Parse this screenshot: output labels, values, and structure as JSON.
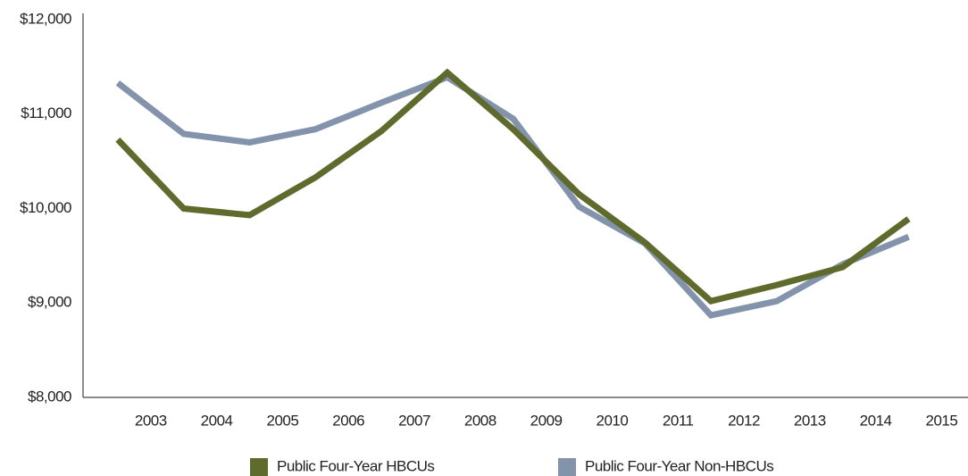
{
  "chart_data": {
    "type": "line",
    "categories": [
      "2003",
      "2004",
      "2005",
      "2006",
      "2007",
      "2008",
      "2009",
      "2010",
      "2011",
      "2012",
      "2013",
      "2014",
      "2015"
    ],
    "series": [
      {
        "name": "Public Four-Year HBCUs",
        "color": "#5f6b2d",
        "values": [
          10730,
          10000,
          9930,
          10330,
          10820,
          11440,
          10840,
          10150,
          9640,
          9020,
          9190,
          9380,
          9890
        ]
      },
      {
        "name": "Public Four-Year Non-HBCUs",
        "color": "#8293ab",
        "values": [
          11330,
          10790,
          10700,
          10840,
          11120,
          11390,
          10950,
          10020,
          9630,
          8870,
          9020,
          9410,
          9700
        ]
      }
    ],
    "ylim": [
      8000,
      12000
    ],
    "yticks": [
      {
        "value": 8000,
        "label": "$8,000"
      },
      {
        "value": 9000,
        "label": "$9,000"
      },
      {
        "value": 10000,
        "label": "$10,000"
      },
      {
        "value": 11000,
        "label": "$11,000"
      },
      {
        "value": 12000,
        "label": "$12,000"
      }
    ],
    "legend": "bottom",
    "grid": false
  }
}
